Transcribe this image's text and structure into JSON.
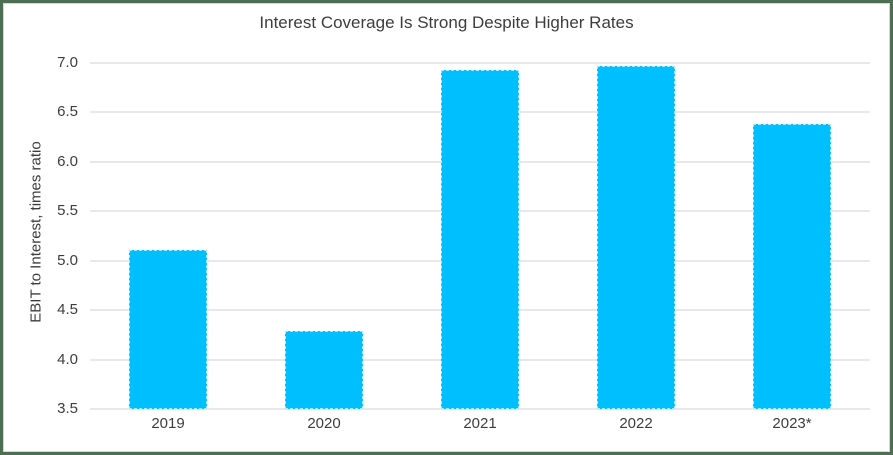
{
  "frame": {
    "border_color": "#4e6e54",
    "background": "#ffffff"
  },
  "chart_data": {
    "type": "bar",
    "title": "Interest Coverage Is Strong Despite Higher Rates",
    "xlabel": "",
    "ylabel": "EBIT to Interest, times ratio",
    "categories": [
      "2019",
      "2020",
      "2021",
      "2022",
      "2023*"
    ],
    "values": [
      5.11,
      4.29,
      6.93,
      6.97,
      6.38
    ],
    "ylim": [
      3.5,
      7.0
    ],
    "ytick_values": [
      3.5,
      4.0,
      4.5,
      5.0,
      5.5,
      6.0,
      6.5,
      7.0
    ],
    "ytick_labels": [
      "3.5",
      "4.0",
      "4.5",
      "5.0",
      "5.5",
      "6.0",
      "6.5",
      "7.0"
    ],
    "bar_color": "#00BFFF",
    "gridline_color": "#e8e8e8",
    "text_color": "#3d3d3d",
    "grid": true,
    "legend": "none",
    "bar_width_fraction": 0.5
  }
}
